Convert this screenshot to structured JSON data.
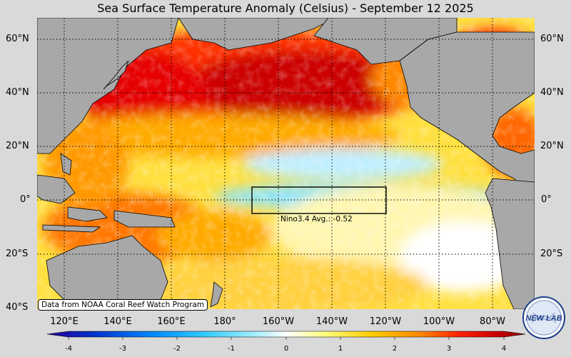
{
  "title": "Sea Surface Temperature Anomaly (Celsius) - September 12 2025",
  "lat_labels_left": [
    "60°N",
    "40°N",
    "20°N",
    "0°",
    "20°S",
    "40°S"
  ],
  "lat_labels_right": [
    "60°N",
    "40°N",
    "20°N",
    "0°",
    "20°S"
  ],
  "lon_labels": [
    "120°E",
    "140°E",
    "160°E",
    "180°",
    "160°W",
    "140°W",
    "120°W",
    "100°W",
    "80°W"
  ],
  "credit": "Data from NOAA Coral Reef Watch Program",
  "nino_box": {
    "label": "Nino3.4 Avg.: -0.52",
    "avg": -0.52
  },
  "colorbar": {
    "ticks": [
      "-4",
      "-3",
      "-2",
      "-1",
      "0",
      "1",
      "2",
      "3",
      "4"
    ],
    "min": -4,
    "max": 4,
    "colors": [
      "#2a0090",
      "#0033cc",
      "#0088ff",
      "#33ccff",
      "#aaf0ff",
      "#ffffff",
      "#ffff80",
      "#ffcc00",
      "#ff8800",
      "#ff2200",
      "#cc0000",
      "#880000"
    ]
  },
  "logo_text": "NEW LAB",
  "colors": {
    "land": "#a8a8a8",
    "background": "#d9d9d9",
    "warm": "#ff9900",
    "cool": "#55ddff"
  }
}
